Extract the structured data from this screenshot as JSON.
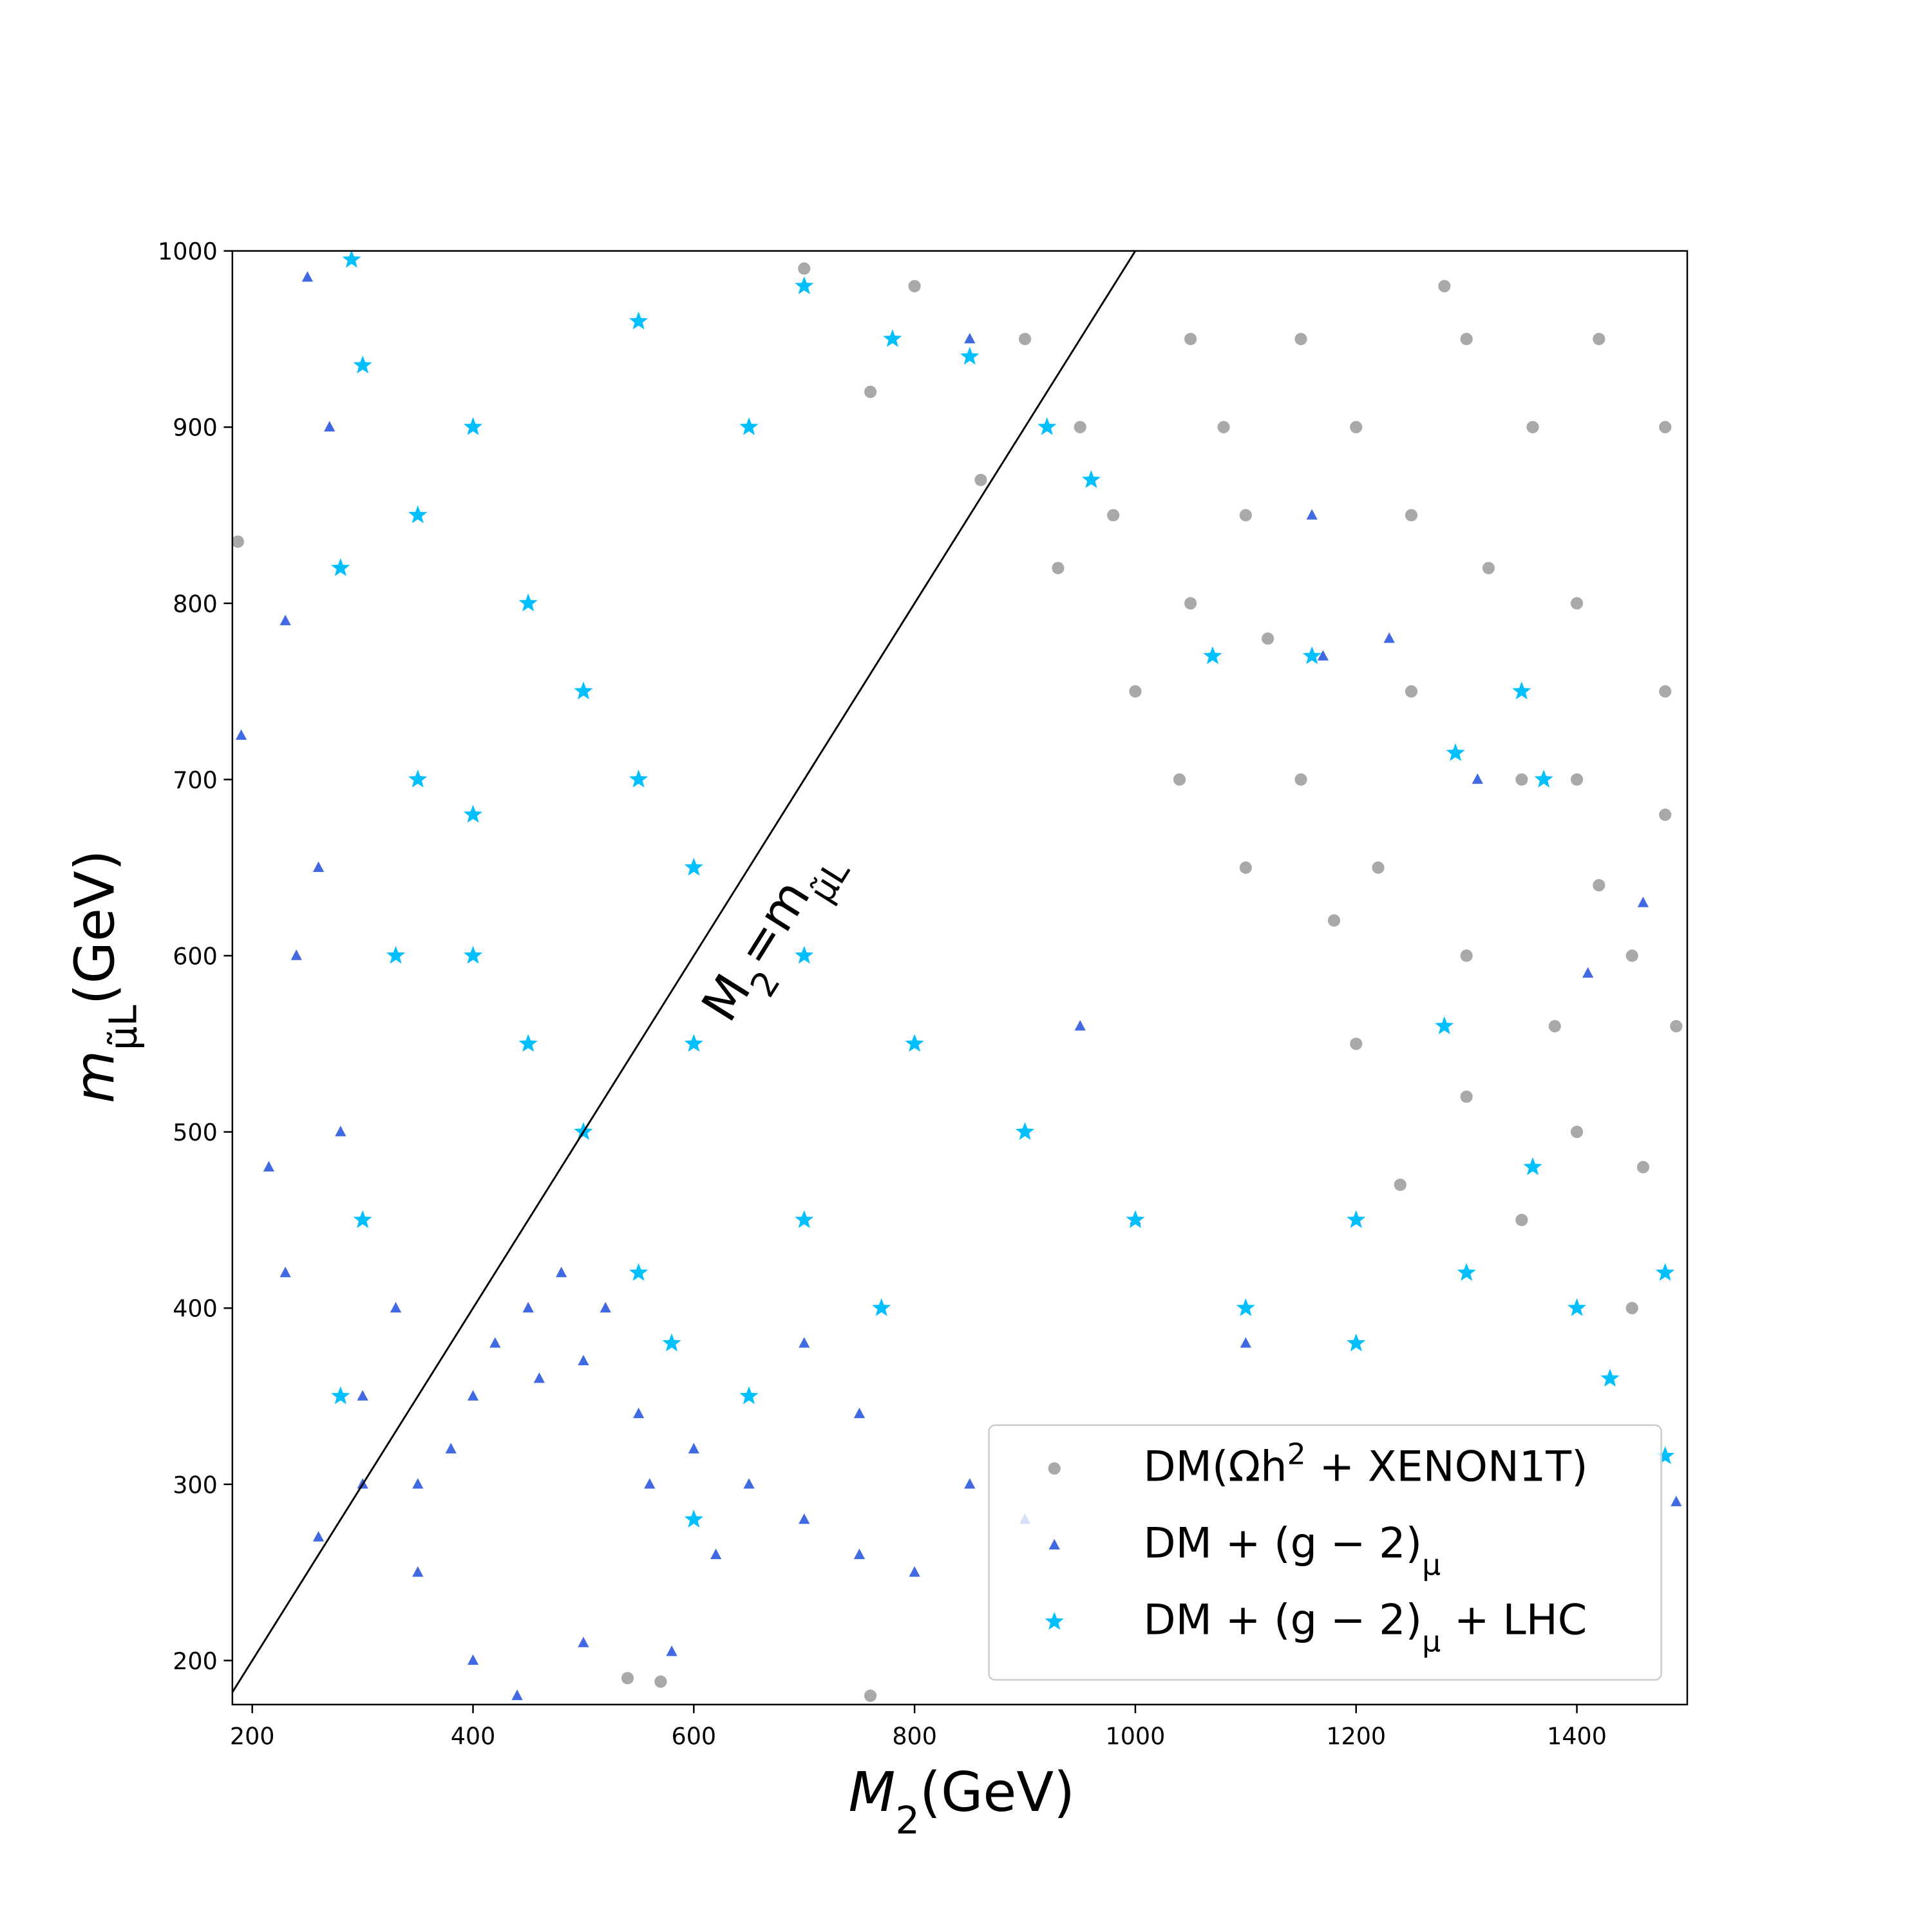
{
  "chart_data": {
    "type": "scatter",
    "xlabel": [
      {
        "italic": "M"
      },
      {
        "sub": "2"
      },
      {
        "text": "(GeV)"
      }
    ],
    "ylabel": [
      {
        "italic": "m"
      },
      {
        "sub": "μ̃L"
      },
      {
        "text": "(GeV)"
      }
    ],
    "xlim": [
      182,
      1500
    ],
    "ylim": [
      175,
      1000
    ],
    "xticks": [
      200,
      400,
      600,
      800,
      1000,
      1200,
      1400
    ],
    "yticks": [
      200,
      300,
      400,
      500,
      600,
      700,
      800,
      900,
      1000
    ],
    "diagonal": {
      "label": [
        {
          "text": "M"
        },
        {
          "sub": "2"
        },
        {
          "text": "=m"
        },
        {
          "sub": "μ̃L"
        }
      ],
      "color": "#000000"
    },
    "legend": "lower right",
    "series": [
      {
        "name": [
          {
            "text": "DM(Ωh"
          },
          {
            "sup": "2"
          },
          {
            "text": " + XENON1T)"
          }
        ],
        "marker": "circle",
        "color": "#a9a9a9",
        "x": [
          1300,
          1200,
          1100,
          1400,
          1350,
          1250,
          1450,
          1300,
          1400,
          1480,
          1150,
          1050,
          950,
          900,
          800,
          700,
          1000,
          1100,
          1200,
          1350,
          1450,
          1400,
          1250,
          1150,
          1050,
          980,
          1320,
          1480,
          1420,
          1220,
          1380,
          1300,
          1460,
          860,
          760,
          1120,
          187,
          540,
          760,
          570,
          1280,
          1180,
          1420,
          1360,
          1040,
          930,
          1080,
          1480,
          1490,
          1240
        ],
        "values": [
          950,
          900,
          850,
          800,
          700,
          750,
          600,
          600,
          500,
          900,
          700,
          800,
          900,
          950,
          980,
          990,
          750,
          650,
          550,
          450,
          400,
          700,
          850,
          950,
          950,
          850,
          820,
          750,
          950,
          650,
          560,
          520,
          480,
          870,
          920,
          780,
          835,
          190,
          180,
          188,
          980,
          620,
          640,
          900,
          700,
          820,
          900,
          680,
          560,
          470
        ]
      },
      {
        "name": [
          {
            "text": "DM + (g − 2)"
          },
          {
            "sub": "μ"
          }
        ],
        "marker": "triangle",
        "color": "#4169e1",
        "x": [
          250,
          190,
          215,
          230,
          260,
          280,
          300,
          350,
          400,
          420,
          450,
          500,
          550,
          600,
          650,
          700,
          750,
          800,
          350,
          400,
          440,
          500,
          580,
          300,
          260,
          240,
          270,
          700,
          750,
          850,
          900,
          480,
          520,
          460,
          1160,
          1230,
          1310,
          1460,
          1410,
          1490,
          1170,
          850,
          950,
          1000,
          1100,
          560,
          620,
          380,
          330,
          230
        ],
        "values": [
          985,
          725,
          480,
          790,
          650,
          500,
          350,
          300,
          350,
          380,
          400,
          370,
          340,
          320,
          300,
          280,
          260,
          250,
          250,
          200,
          180,
          210,
          205,
          300,
          270,
          600,
          900,
          380,
          340,
          300,
          280,
          420,
          400,
          360,
          850,
          780,
          700,
          630,
          590,
          290,
          770,
          950,
          560,
          450,
          380,
          300,
          260,
          320,
          400,
          420
        ]
      },
      {
        "name": [
          {
            "text": "DM + (g − 2)"
          },
          {
            "sub": "μ"
          },
          {
            "text": " + LHC"
          }
        ],
        "marker": "star",
        "color": "#00bfff",
        "x": [
          290,
          300,
          350,
          400,
          450,
          500,
          550,
          600,
          400,
          450,
          500,
          600,
          700,
          800,
          900,
          1000,
          1100,
          1200,
          1300,
          1400,
          1480,
          1480,
          1430,
          1360,
          1280,
          1160,
          1350,
          1290,
          1370,
          770,
          700,
          650,
          580,
          550,
          920,
          850,
          780,
          700,
          650,
          550,
          350,
          330,
          280,
          280,
          300,
          400,
          600,
          960,
          1070,
          1200
        ],
        "values": [
          995,
          935,
          850,
          900,
          800,
          750,
          700,
          650,
          600,
          550,
          500,
          550,
          600,
          550,
          500,
          450,
          400,
          380,
          420,
          400,
          420,
          316,
          360,
          480,
          560,
          770,
          750,
          715,
          700,
          400,
          450,
          350,
          380,
          420,
          900,
          940,
          950,
          980,
          900,
          960,
          700,
          600,
          820,
          350,
          450,
          680,
          280,
          870,
          770,
          450
        ]
      }
    ]
  }
}
